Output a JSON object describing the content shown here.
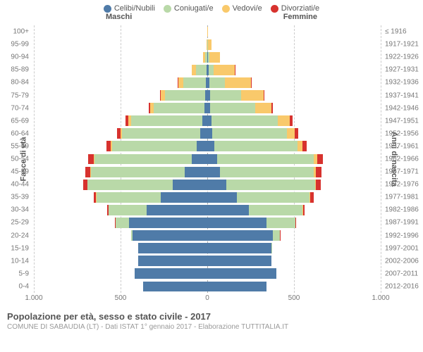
{
  "legend": [
    {
      "label": "Celibi/Nubili",
      "color": "#4f7ba8"
    },
    {
      "label": "Coniugati/e",
      "color": "#b9d9a8"
    },
    {
      "label": "Vedovi/e",
      "color": "#f9c96b"
    },
    {
      "label": "Divorziati/e",
      "color": "#d7322e"
    }
  ],
  "header": {
    "left": "Maschi",
    "right": "Femmine"
  },
  "axis": {
    "left_title": "Fasce di età",
    "right_title": "Anni di nascita",
    "x_ticks": [
      {
        "pos": 0,
        "label": "1.000"
      },
      {
        "pos": 0.25,
        "label": "500"
      },
      {
        "pos": 0.5,
        "label": "0"
      },
      {
        "pos": 0.75,
        "label": "500"
      },
      {
        "pos": 1,
        "label": "1.000"
      }
    ],
    "max_value": 1000
  },
  "colors": {
    "celibi": "#4f7ba8",
    "coniugati": "#b9d9a8",
    "vedovi": "#f9c96b",
    "divorziati": "#d7322e"
  },
  "rows": [
    {
      "age": "100+",
      "birth": "≤ 1916",
      "m": {
        "c": 0,
        "k": 0,
        "v": 0,
        "d": 0
      },
      "f": {
        "c": 0,
        "k": 0,
        "v": 2,
        "d": 0
      }
    },
    {
      "age": "95-99",
      "birth": "1917-1921",
      "m": {
        "c": 0,
        "k": 2,
        "v": 3,
        "d": 0
      },
      "f": {
        "c": 2,
        "k": 2,
        "v": 22,
        "d": 0
      }
    },
    {
      "age": "90-94",
      "birth": "1922-1926",
      "m": {
        "c": 2,
        "k": 12,
        "v": 12,
        "d": 0
      },
      "f": {
        "c": 4,
        "k": 8,
        "v": 60,
        "d": 0
      }
    },
    {
      "age": "85-89",
      "birth": "1927-1931",
      "m": {
        "c": 6,
        "k": 60,
        "v": 25,
        "d": 0
      },
      "f": {
        "c": 8,
        "k": 30,
        "v": 120,
        "d": 2
      }
    },
    {
      "age": "80-84",
      "birth": "1932-1936",
      "m": {
        "c": 8,
        "k": 130,
        "v": 30,
        "d": 3
      },
      "f": {
        "c": 12,
        "k": 90,
        "v": 150,
        "d": 4
      }
    },
    {
      "age": "75-79",
      "birth": "1937-1941",
      "m": {
        "c": 12,
        "k": 230,
        "v": 25,
        "d": 5
      },
      "f": {
        "c": 15,
        "k": 180,
        "v": 130,
        "d": 6
      }
    },
    {
      "age": "70-74",
      "birth": "1942-1946",
      "m": {
        "c": 18,
        "k": 290,
        "v": 20,
        "d": 8
      },
      "f": {
        "c": 18,
        "k": 260,
        "v": 90,
        "d": 10
      }
    },
    {
      "age": "65-69",
      "birth": "1947-1951",
      "m": {
        "c": 30,
        "k": 410,
        "v": 15,
        "d": 15
      },
      "f": {
        "c": 25,
        "k": 380,
        "v": 70,
        "d": 15
      }
    },
    {
      "age": "60-64",
      "birth": "1952-1956",
      "m": {
        "c": 40,
        "k": 450,
        "v": 10,
        "d": 20
      },
      "f": {
        "c": 30,
        "k": 430,
        "v": 45,
        "d": 18
      }
    },
    {
      "age": "55-59",
      "birth": "1957-1961",
      "m": {
        "c": 60,
        "k": 490,
        "v": 8,
        "d": 25
      },
      "f": {
        "c": 40,
        "k": 480,
        "v": 30,
        "d": 25
      }
    },
    {
      "age": "50-54",
      "birth": "1962-1966",
      "m": {
        "c": 90,
        "k": 560,
        "v": 6,
        "d": 30
      },
      "f": {
        "c": 55,
        "k": 560,
        "v": 20,
        "d": 30
      }
    },
    {
      "age": "45-49",
      "birth": "1967-1971",
      "m": {
        "c": 130,
        "k": 540,
        "v": 4,
        "d": 28
      },
      "f": {
        "c": 75,
        "k": 540,
        "v": 12,
        "d": 30
      }
    },
    {
      "age": "40-44",
      "birth": "1972-1976",
      "m": {
        "c": 200,
        "k": 490,
        "v": 2,
        "d": 25
      },
      "f": {
        "c": 110,
        "k": 510,
        "v": 8,
        "d": 28
      }
    },
    {
      "age": "35-39",
      "birth": "1977-1981",
      "m": {
        "c": 270,
        "k": 370,
        "v": 1,
        "d": 15
      },
      "f": {
        "c": 170,
        "k": 420,
        "v": 4,
        "d": 18
      }
    },
    {
      "age": "30-34",
      "birth": "1982-1986",
      "m": {
        "c": 350,
        "k": 220,
        "v": 0,
        "d": 8
      },
      "f": {
        "c": 240,
        "k": 310,
        "v": 2,
        "d": 10
      }
    },
    {
      "age": "25-29",
      "birth": "1987-1991",
      "m": {
        "c": 450,
        "k": 80,
        "v": 0,
        "d": 2
      },
      "f": {
        "c": 340,
        "k": 170,
        "v": 0,
        "d": 4
      }
    },
    {
      "age": "20-24",
      "birth": "1992-1996",
      "m": {
        "c": 430,
        "k": 10,
        "v": 0,
        "d": 0
      },
      "f": {
        "c": 380,
        "k": 40,
        "v": 0,
        "d": 1
      }
    },
    {
      "age": "15-19",
      "birth": "1997-2001",
      "m": {
        "c": 400,
        "k": 0,
        "v": 0,
        "d": 0
      },
      "f": {
        "c": 370,
        "k": 2,
        "v": 0,
        "d": 0
      }
    },
    {
      "age": "10-14",
      "birth": "2002-2006",
      "m": {
        "c": 400,
        "k": 0,
        "v": 0,
        "d": 0
      },
      "f": {
        "c": 370,
        "k": 0,
        "v": 0,
        "d": 0
      }
    },
    {
      "age": "5-9",
      "birth": "2007-2011",
      "m": {
        "c": 420,
        "k": 0,
        "v": 0,
        "d": 0
      },
      "f": {
        "c": 400,
        "k": 0,
        "v": 0,
        "d": 0
      }
    },
    {
      "age": "0-4",
      "birth": "2012-2016",
      "m": {
        "c": 370,
        "k": 0,
        "v": 0,
        "d": 0
      },
      "f": {
        "c": 340,
        "k": 0,
        "v": 0,
        "d": 0
      }
    }
  ],
  "footer": {
    "title": "Popolazione per età, sesso e stato civile - 2017",
    "subtitle": "COMUNE DI SABAUDIA (LT) - Dati ISTAT 1° gennaio 2017 - Elaborazione TUTTITALIA.IT"
  }
}
